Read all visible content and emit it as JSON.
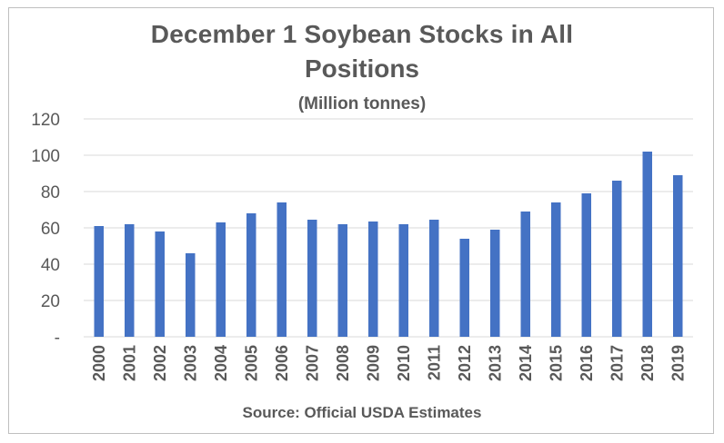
{
  "chart_data": {
    "type": "bar",
    "title": "December 1 Soybean Stocks in All Positions",
    "title_line1": "December 1 Soybean Stocks in All",
    "title_line2": "Positions",
    "subtitle": "(Million tonnes)",
    "source": "Source: Official USDA Estimates",
    "categories": [
      "2000",
      "2001",
      "2002",
      "2003",
      "2004",
      "2005",
      "2006",
      "2007",
      "2008",
      "2009",
      "2010",
      "2011",
      "2012",
      "2013",
      "2014",
      "2015",
      "2016",
      "2017",
      "2018",
      "2019"
    ],
    "values": [
      61,
      62,
      58,
      46,
      63,
      68,
      74,
      64.5,
      62,
      63.5,
      62,
      64.5,
      54,
      59,
      69,
      74,
      79,
      86,
      102,
      89
    ],
    "ylim": [
      0,
      120
    ],
    "yticks": [
      0,
      20,
      40,
      60,
      80,
      100,
      120
    ],
    "ytick_labels": [
      "-",
      "20",
      "40",
      "60",
      "80",
      "100",
      "120"
    ],
    "xlabel": "",
    "ylabel": "",
    "grid": true,
    "bar_color": "#4472c4",
    "grid_color": "#d9d9d9",
    "text_color": "#595959"
  }
}
